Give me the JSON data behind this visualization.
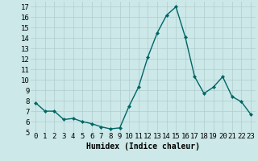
{
  "x": [
    0,
    1,
    2,
    3,
    4,
    5,
    6,
    7,
    8,
    9,
    10,
    11,
    12,
    13,
    14,
    15,
    16,
    17,
    18,
    19,
    20,
    21,
    22,
    23
  ],
  "y": [
    7.8,
    7.0,
    7.0,
    6.2,
    6.3,
    6.0,
    5.8,
    5.5,
    5.3,
    5.4,
    7.5,
    9.3,
    12.2,
    14.5,
    16.2,
    17.0,
    14.1,
    10.3,
    8.7,
    9.3,
    10.3,
    8.4,
    7.9,
    6.7
  ],
  "line_color": "#006666",
  "marker": "D",
  "marker_size": 2,
  "bg_color": "#cce8e8",
  "grid_color": "#b0cccc",
  "xlabel": "Humidex (Indice chaleur)",
  "ylim": [
    5,
    17.5
  ],
  "xlim": [
    -0.5,
    23.5
  ],
  "yticks": [
    5,
    6,
    7,
    8,
    9,
    10,
    11,
    12,
    13,
    14,
    15,
    16,
    17
  ],
  "xticks": [
    0,
    1,
    2,
    3,
    4,
    5,
    6,
    7,
    8,
    9,
    10,
    11,
    12,
    13,
    14,
    15,
    16,
    17,
    18,
    19,
    20,
    21,
    22,
    23
  ],
  "xlabel_fontsize": 7,
  "tick_fontsize": 6.5,
  "linewidth": 1.0
}
